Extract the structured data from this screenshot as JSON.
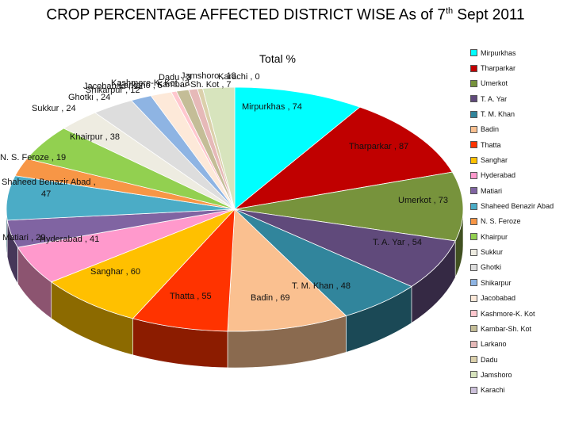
{
  "title_main": "CROP PERCENTAGE AFFECTED DISTRICT WISE As of 7",
  "title_sup": "th",
  "title_tail": " Sept 2011",
  "chart_data": {
    "type": "pie",
    "series_name": "Total %",
    "categories": [
      "Mirpurkhas",
      "Tharparkar",
      "Umerkot",
      "T. A. Yar",
      "T. M. Khan",
      "Badin",
      "Thatta",
      "Sanghar",
      "Hyderabad",
      "Matiari",
      "Shaheed Benazir Abad",
      "N. S. Feroze",
      "Khairpur",
      "Sukkur",
      "Ghotki",
      "Shikarpur",
      "Jacobabad",
      "Kashmore-K. Kot",
      "Kambar-Sh. Kot",
      "Larkano",
      "Dadu",
      "Jamshoro",
      "Karachi"
    ],
    "values": [
      74,
      87,
      73,
      54,
      48,
      69,
      55,
      60,
      41,
      29,
      47,
      19,
      38,
      24,
      24,
      12,
      12,
      3,
      7,
      5,
      3,
      18,
      0
    ],
    "colors": [
      "#00ffff",
      "#c00000",
      "#77933c",
      "#604a7b",
      "#31859c",
      "#fac090",
      "#ff3300",
      "#ffc000",
      "#ff99cc",
      "#8064a2",
      "#4bacc6",
      "#f79646",
      "#92d050",
      "#eeece1",
      "#dddddd",
      "#8eb4e3",
      "#fde9d9",
      "#ffc7ce",
      "#c4bd97",
      "#e6b9b8",
      "#dbd0ab",
      "#d7e4bd",
      "#ccc0da"
    ]
  },
  "labels": [
    {
      "text": "Mirpurkhas , 74"
    },
    {
      "text": "Tharparkar , 87"
    },
    {
      "text": "Umerkot , 73"
    },
    {
      "text": "T. A. Yar , 54"
    },
    {
      "text": "T. M. Khan , 48"
    },
    {
      "text": "Badin , 69"
    },
    {
      "text": "Thatta , 55"
    },
    {
      "text": "Sanghar , 60"
    },
    {
      "text": "Hyderabad , 41"
    },
    {
      "text": "Matiari , 29"
    },
    {
      "text": "Shaheed Benazir Abad ,"
    },
    {
      "text": "47"
    },
    {
      "text": "N. S. Feroze , 19"
    },
    {
      "text": "Khairpur , 38"
    },
    {
      "text": "Sukkur , 24"
    },
    {
      "text": "Ghotki , 24"
    },
    {
      "text": "Shikarpur , 12"
    },
    {
      "text": "Jacobabad , 12"
    },
    {
      "text": "Kashmore-K. Kot , 3"
    },
    {
      "text": "Kambar-Sh. Kot , 7"
    },
    {
      "text": "Larkano , 5"
    },
    {
      "text": "Dadu , 3"
    },
    {
      "text": "Jamshoro , 18"
    },
    {
      "text": "Karachi , 0"
    }
  ]
}
